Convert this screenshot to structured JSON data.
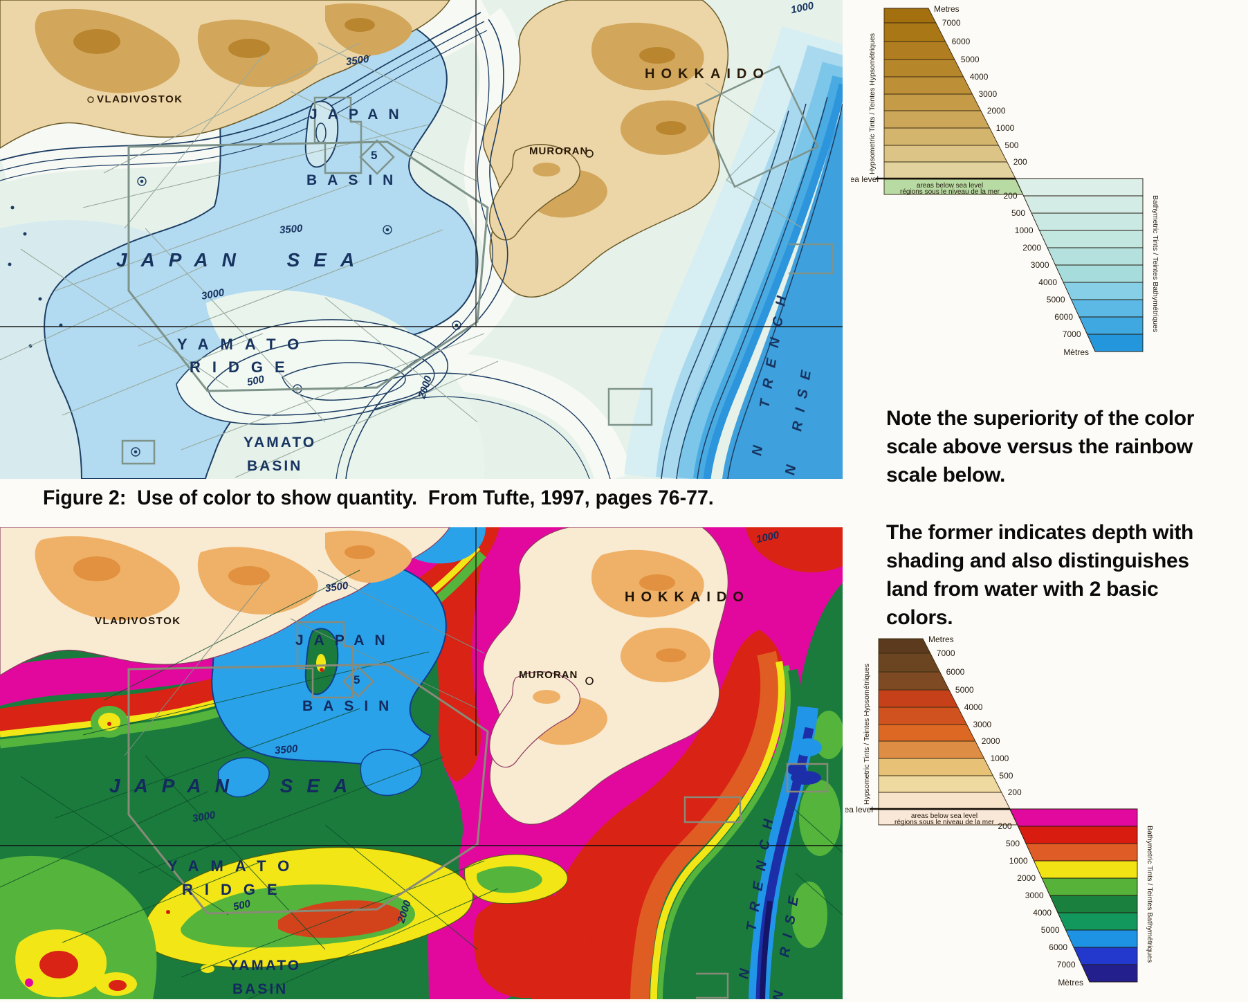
{
  "caption": "Figure 2:  Use of color to show quantity.  From Tufte, 1997, pages 76-77.",
  "note": {
    "para1": "Note the superiority of the color scale above versus the rainbow scale below.",
    "para2": "The former indicates depth with shading and also distinguishes land from water with 2 basic colors."
  },
  "map_labels": {
    "vladivostok": "VLADIVOSTOK",
    "japan": "JAPAN",
    "basin": "BASIN",
    "japan_sea": "JAPAN SEA",
    "yamato": "YAMATO",
    "ridge": "RIDGE",
    "yamato_basin_1": "YAMATO",
    "yamato_basin_2": "BASIN",
    "hokkaido": "HOKKAIDO",
    "muroran": "MURORAN",
    "trench": "N TRENCH",
    "rise": "N RISE",
    "c3500": "3500",
    "c3000": "3000",
    "c500": "500",
    "c2000": "2000",
    "c1000": "1000",
    "box5": "5"
  },
  "legend": {
    "unit_top": "Metres",
    "unit_bottom": "Mètres",
    "sea_level": "sea level",
    "below_1": "areas below sea level",
    "below_2": "régions sous le niveau de la mer",
    "left_axis": "Hypsometric Tints  /  Teintes Hypsométriques",
    "right_axis": "Bathymetric Tints  /  Teintes Bathymétriques",
    "hypso_ticks": [
      "7000",
      "6000",
      "5000",
      "4000",
      "3000",
      "2000",
      "1000",
      "500",
      "200"
    ],
    "bathy_ticks": [
      "200",
      "500",
      "1000",
      "2000",
      "3000",
      "4000",
      "5000",
      "6000",
      "7000"
    ],
    "top_scale": {
      "below_fill": "#b8dba4",
      "hypso_colors": [
        "#a4700f",
        "#aa7716",
        "#b07d20",
        "#b6862b",
        "#bd9038",
        "#c59b48",
        "#cca75a",
        "#d4b56e",
        "#dbc485",
        "#e2d29e"
      ],
      "bathy_colors": [
        "#dcefe9",
        "#d4ece6",
        "#cbe9e3",
        "#c2e6e0",
        "#b4e1dd",
        "#a6dcdc",
        "#86cfe6",
        "#5cb9e5",
        "#3fa8e0",
        "#2497dc"
      ]
    },
    "bottom_scale": {
      "below_fill": "#f9e7d8",
      "hypso_colors": [
        "#5b3a1e",
        "#6b4522",
        "#7d4a24",
        "#c64019",
        "#d0521e",
        "#dc6823",
        "#de8d45",
        "#e7c276",
        "#eed9a0",
        "#f7e2ca"
      ],
      "bathy_colors": [
        "#e20a9e",
        "#d81c10",
        "#e05c26",
        "#f2e414",
        "#57b23a",
        "#1a803e",
        "#12985c",
        "#1e93e4",
        "#2338cc",
        "#23208e"
      ]
    }
  },
  "chart_data": [
    {
      "type": "heatmap",
      "title": "Top legend — Hypsometric Tints / Teintes Hypsométriques and Bathymetric Tints / Teintes Bathymétriques (metres)",
      "elevation_boundaries_m": [
        200,
        500,
        1000,
        2000,
        3000,
        4000,
        5000,
        6000,
        7000
      ],
      "land_band_colors_high_to_low": [
        "#a4700f",
        "#aa7716",
        "#b07d20",
        "#b6862b",
        "#bd9038",
        "#c59b48",
        "#cca75a",
        "#d4b56e",
        "#dbc485",
        "#e2d29e"
      ],
      "water_band_colors_shallow_to_deep": [
        "#dcefe9",
        "#d4ece6",
        "#cbe9e3",
        "#c2e6e0",
        "#b4e1dd",
        "#a6dcdc",
        "#86cfe6",
        "#5cb9e5",
        "#3fa8e0",
        "#2497dc"
      ],
      "annotations": [
        "Metres",
        "sea level",
        "areas below sea level",
        "régions sous le niveau de la mer",
        "Mètres"
      ]
    },
    {
      "type": "heatmap",
      "title": "Bottom legend — rainbow scale version of the same elevation/depth bands (metres)",
      "elevation_boundaries_m": [
        200,
        500,
        1000,
        2000,
        3000,
        4000,
        5000,
        6000,
        7000
      ],
      "land_band_colors_high_to_low": [
        "#5b3a1e",
        "#6b4522",
        "#7d4a24",
        "#c64019",
        "#d0521e",
        "#dc6823",
        "#de8d45",
        "#e7c276",
        "#eed9a0",
        "#f7e2ca"
      ],
      "water_band_colors_shallow_to_deep": [
        "#e20a9e",
        "#d81c10",
        "#e05c26",
        "#f2e414",
        "#57b23a",
        "#1a803e",
        "#12985c",
        "#1e93e4",
        "#2338cc",
        "#23208e"
      ],
      "annotations": [
        "Metres",
        "sea level",
        "areas below sea level",
        "régions sous le niveau de la mer",
        "Mètres"
      ]
    }
  ]
}
